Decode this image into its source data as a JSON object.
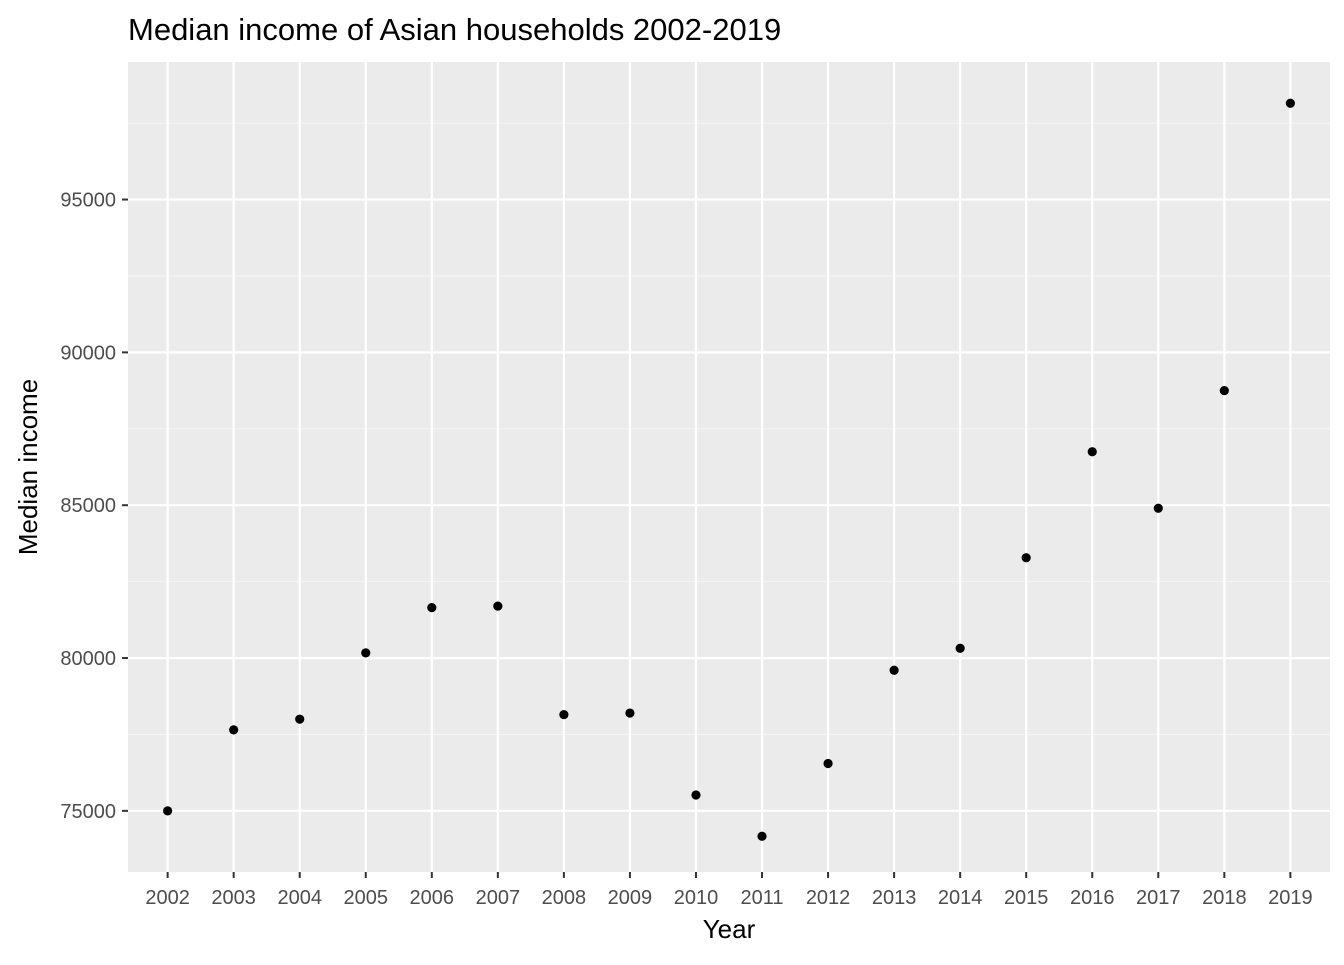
{
  "chart_data": {
    "type": "scatter",
    "title": "Median income of Asian households 2002-2019",
    "xlabel": "Year",
    "ylabel": "Median income",
    "x": [
      "2002",
      "2003",
      "2004",
      "2005",
      "2006",
      "2007",
      "2008",
      "2009",
      "2010",
      "2011",
      "2012",
      "2013",
      "2014",
      "2015",
      "2016",
      "2017",
      "2018",
      "2019"
    ],
    "y": [
      75000,
      77650,
      78000,
      80170,
      81650,
      81700,
      78150,
      78200,
      75520,
      74170,
      76550,
      79600,
      80320,
      83280,
      86750,
      84900,
      88750,
      98150
    ],
    "y_ticks": [
      75000,
      80000,
      85000,
      90000,
      95000
    ],
    "y_tick_labels": [
      "75000",
      "80000",
      "85000",
      "90000",
      "95000"
    ],
    "ylim": [
      73000,
      99500
    ],
    "grid": true,
    "legend": "none",
    "colors": {
      "panel_background": "#ebebeb",
      "grid_major": "#ffffff",
      "grid_minor": "#f5f5f5",
      "point": "#000000",
      "tick_text": "#4d4d4d"
    }
  }
}
